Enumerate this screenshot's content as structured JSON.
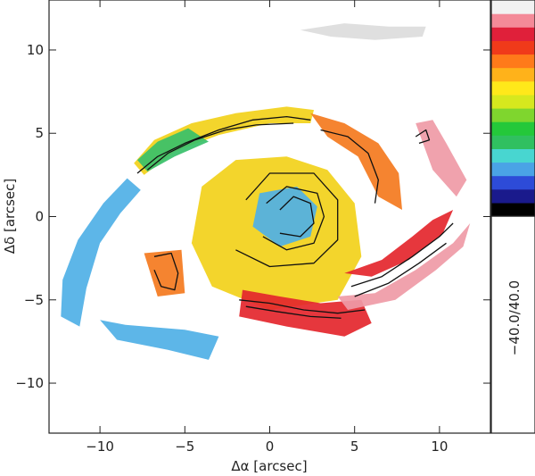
{
  "chart_data": {
    "type": "heatmap",
    "xlabel": "Δα [arcsec]",
    "ylabel": "Δδ [arcsec]",
    "xlim": [
      -13,
      13
    ],
    "ylim": [
      -13,
      13
    ],
    "xticks": [
      -10,
      -5,
      0,
      5,
      10
    ],
    "yticks": [
      -10,
      -5,
      0,
      5,
      10
    ],
    "tick_labels": {
      "x": [
        "−10",
        "−5",
        "0",
        "5",
        "10"
      ],
      "y": [
        "−10",
        "−5",
        "0",
        "5",
        "10"
      ]
    },
    "colorbar": {
      "range_label": "−40.0/40.0",
      "colors_bottom_to_top": [
        "#000000",
        "#1a1a8c",
        "#2d4bd8",
        "#4aa3e6",
        "#48d6d0",
        "#30c060",
        "#24c83a",
        "#7fd62e",
        "#d6e81e",
        "#ffe81a",
        "#ffb21a",
        "#ff7a1a",
        "#f03a1a",
        "#e0203a",
        "#f48a98",
        "#f2f2f2"
      ]
    },
    "regions": [
      {
        "name": "northern-arm",
        "color": "#f2d11a",
        "points": [
          [
            -8,
            3.2
          ],
          [
            -6.8,
            4.6
          ],
          [
            -4.6,
            5.6
          ],
          [
            -2,
            6.2
          ],
          [
            1,
            6.6
          ],
          [
            2.6,
            6.4
          ],
          [
            2.4,
            5.6
          ],
          [
            0,
            5.6
          ],
          [
            -3,
            4.9
          ],
          [
            -5.6,
            3.9
          ],
          [
            -7.4,
            2.5
          ]
        ]
      },
      {
        "name": "northern-arm-green",
        "color": "#38c06a",
        "points": [
          [
            -7.8,
            3.4
          ],
          [
            -6.6,
            4.5
          ],
          [
            -4.8,
            5.3
          ],
          [
            -3.6,
            4.5
          ],
          [
            -5.6,
            3.6
          ],
          [
            -7.2,
            2.7
          ]
        ]
      },
      {
        "name": "western-arm",
        "color": "#4fb0e6",
        "points": [
          [
            -8.4,
            2.3
          ],
          [
            -9.8,
            0.8
          ],
          [
            -11.3,
            -1.4
          ],
          [
            -12.2,
            -3.8
          ],
          [
            -12.3,
            -6
          ],
          [
            -11.2,
            -6.6
          ],
          [
            -10.8,
            -4.3
          ],
          [
            -10,
            -1.6
          ],
          [
            -8.8,
            0.2
          ],
          [
            -7.6,
            1.6
          ]
        ]
      },
      {
        "name": "southwest-arm",
        "color": "#4fb0e6",
        "points": [
          [
            -10,
            -6.2
          ],
          [
            -8.5,
            -6.5
          ],
          [
            -5,
            -6.8
          ],
          [
            -3,
            -7.2
          ],
          [
            -3.6,
            -8.6
          ],
          [
            -6,
            -8
          ],
          [
            -9,
            -7.4
          ]
        ]
      },
      {
        "name": "central-yellow",
        "color": "#f2d11a",
        "points": [
          [
            -4,
            1.8
          ],
          [
            -2,
            3.4
          ],
          [
            1,
            3.6
          ],
          [
            3.4,
            2.8
          ],
          [
            5,
            0.8
          ],
          [
            5.4,
            -2.4
          ],
          [
            4,
            -5
          ],
          [
            0,
            -5.6
          ],
          [
            -3.4,
            -4.2
          ],
          [
            -4.6,
            -1.6
          ]
        ]
      },
      {
        "name": "central-blue",
        "color": "#4fb0e6",
        "points": [
          [
            -0.6,
            1.4
          ],
          [
            1.6,
            1.8
          ],
          [
            2.8,
            0.6
          ],
          [
            2.4,
            -1.2
          ],
          [
            0.6,
            -1.8
          ],
          [
            -1,
            -0.6
          ]
        ]
      },
      {
        "name": "southern-arm-red",
        "color": "#e4262c",
        "points": [
          [
            -1.6,
            -4.4
          ],
          [
            0.6,
            -4.8
          ],
          [
            3,
            -5.2
          ],
          [
            5.4,
            -5
          ],
          [
            6,
            -6.4
          ],
          [
            4.4,
            -7.2
          ],
          [
            1,
            -6.6
          ],
          [
            -1.8,
            -6
          ]
        ]
      },
      {
        "name": "eastern-arm-pink",
        "color": "#ef9aa6",
        "points": [
          [
            4,
            -4.8
          ],
          [
            6.2,
            -4.6
          ],
          [
            8.6,
            -3.2
          ],
          [
            10.8,
            -1.6
          ],
          [
            11.8,
            -0.4
          ],
          [
            11.4,
            -1.8
          ],
          [
            9.8,
            -3.2
          ],
          [
            7.4,
            -5
          ],
          [
            4.6,
            -5.6
          ]
        ]
      },
      {
        "name": "eastern-arm-red",
        "color": "#e4262c",
        "points": [
          [
            4.4,
            -3.4
          ],
          [
            6.6,
            -2.6
          ],
          [
            8.4,
            -1.2
          ],
          [
            9.6,
            -0.2
          ],
          [
            10.8,
            0.4
          ],
          [
            10.2,
            -1
          ],
          [
            8.2,
            -2.6
          ],
          [
            6,
            -3.6
          ]
        ]
      },
      {
        "name": "northeast-orange",
        "color": "#f47a1e",
        "points": [
          [
            2.4,
            6.2
          ],
          [
            4.4,
            5.6
          ],
          [
            6.4,
            4.4
          ],
          [
            7.6,
            2.6
          ],
          [
            7.8,
            0.4
          ],
          [
            6.4,
            1.2
          ],
          [
            5.2,
            3.6
          ],
          [
            3.4,
            4.8
          ]
        ]
      },
      {
        "name": "far-east-pink",
        "color": "#ef9aa6",
        "points": [
          [
            8.6,
            5.6
          ],
          [
            9.6,
            5.8
          ],
          [
            10.4,
            4.4
          ],
          [
            11.6,
            2.2
          ],
          [
            11,
            1.2
          ],
          [
            9.6,
            2.8
          ]
        ]
      },
      {
        "name": "west-orange-clump",
        "color": "#f47a1e",
        "points": [
          [
            -7.4,
            -2.2
          ],
          [
            -5.2,
            -2
          ],
          [
            -5,
            -4.6
          ],
          [
            -6.6,
            -4.8
          ]
        ]
      },
      {
        "name": "faint-north-cloud",
        "color": "#dcdcdc",
        "points": [
          [
            1.8,
            11.2
          ],
          [
            4.4,
            11.6
          ],
          [
            7,
            11.4
          ],
          [
            9.2,
            11.4
          ],
          [
            9,
            10.8
          ],
          [
            6.2,
            10.6
          ],
          [
            3.6,
            10.8
          ]
        ]
      }
    ],
    "contours": [
      {
        "name": "north-arm",
        "points": [
          [
            -7.8,
            2.6
          ],
          [
            -6.6,
            3.6
          ],
          [
            -5,
            4.4
          ],
          [
            -3,
            5.2
          ],
          [
            -1,
            5.8
          ],
          [
            1,
            6
          ],
          [
            2.4,
            5.8
          ]
        ]
      },
      {
        "name": "north-arm-inner",
        "points": [
          [
            -7.2,
            2.8
          ],
          [
            -6,
            3.8
          ],
          [
            -4.4,
            4.6
          ],
          [
            -2.6,
            5.2
          ],
          [
            -0.8,
            5.5
          ],
          [
            1.4,
            5.6
          ]
        ]
      },
      {
        "name": "center-swirl-1",
        "points": [
          [
            0.6,
            0.4
          ],
          [
            1.4,
            1.2
          ],
          [
            2.4,
            0.8
          ],
          [
            2.6,
            -0.4
          ],
          [
            1.8,
            -1.2
          ],
          [
            0.6,
            -1
          ]
        ]
      },
      {
        "name": "center-swirl-2",
        "points": [
          [
            -0.2,
            0.8
          ],
          [
            1,
            1.8
          ],
          [
            2.8,
            1.4
          ],
          [
            3.2,
            0
          ],
          [
            2.6,
            -1.6
          ],
          [
            1,
            -2
          ],
          [
            -0.4,
            -1.2
          ]
        ]
      },
      {
        "name": "center-swirl-3",
        "points": [
          [
            -1.4,
            1
          ],
          [
            0,
            2.6
          ],
          [
            2.6,
            2.6
          ],
          [
            4,
            1
          ],
          [
            4,
            -1.4
          ],
          [
            2.6,
            -2.8
          ],
          [
            0,
            -3
          ],
          [
            -2,
            -2
          ]
        ]
      },
      {
        "name": "south-arm",
        "points": [
          [
            -1.8,
            -5
          ],
          [
            0,
            -5.2
          ],
          [
            2,
            -5.6
          ],
          [
            4,
            -5.8
          ],
          [
            5.6,
            -5.6
          ]
        ]
      },
      {
        "name": "south-arm-inner",
        "points": [
          [
            -1.4,
            -5.4
          ],
          [
            0.4,
            -5.7
          ],
          [
            2.4,
            -6
          ],
          [
            4.2,
            -6.1
          ]
        ]
      },
      {
        "name": "east-arm-1",
        "points": [
          [
            4.8,
            -4.2
          ],
          [
            6.6,
            -3.6
          ],
          [
            8.4,
            -2.4
          ],
          [
            10,
            -1.2
          ],
          [
            10.8,
            -0.4
          ]
        ]
      },
      {
        "name": "east-arm-2",
        "points": [
          [
            5,
            -4.8
          ],
          [
            7,
            -4
          ],
          [
            8.8,
            -2.8
          ],
          [
            10.4,
            -1.6
          ]
        ]
      },
      {
        "name": "west-clump",
        "points": [
          [
            -6.8,
            -2.4
          ],
          [
            -5.8,
            -2.2
          ],
          [
            -5.4,
            -3.4
          ],
          [
            -5.6,
            -4.4
          ],
          [
            -6.4,
            -4.2
          ],
          [
            -6.8,
            -3.2
          ]
        ]
      },
      {
        "name": "ne-arc",
        "points": [
          [
            3,
            5.2
          ],
          [
            4.6,
            4.8
          ],
          [
            5.8,
            3.8
          ],
          [
            6.4,
            2.2
          ],
          [
            6.2,
            0.8
          ]
        ]
      },
      {
        "name": "ne-small",
        "points": [
          [
            8.6,
            4.8
          ],
          [
            9.2,
            5.2
          ],
          [
            9.4,
            4.6
          ],
          [
            8.8,
            4.4
          ]
        ]
      }
    ]
  }
}
